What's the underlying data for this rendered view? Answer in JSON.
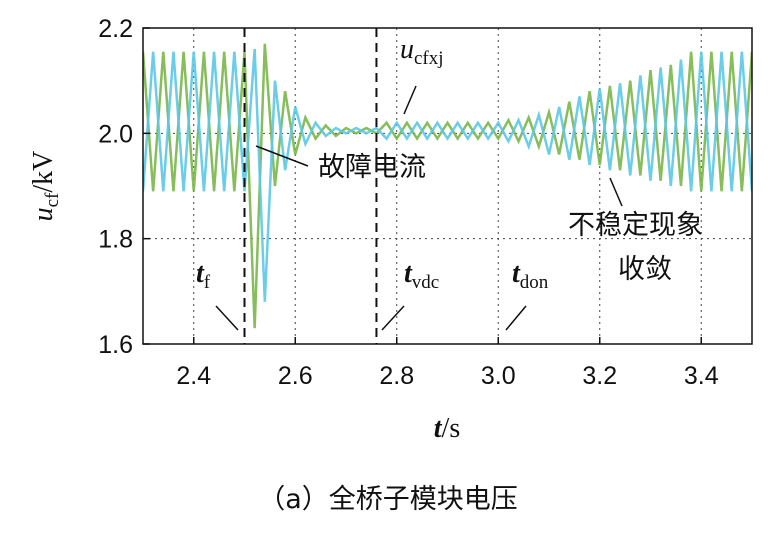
{
  "chart_data": {
    "type": "line",
    "x": [
      2.3,
      2.32,
      2.34,
      2.36,
      2.38,
      2.4,
      2.42,
      2.44,
      2.46,
      2.48,
      2.5,
      2.52,
      2.54,
      2.56,
      2.58,
      2.6,
      2.62,
      2.64,
      2.66,
      2.68,
      2.7,
      2.72,
      2.74,
      2.76,
      2.78,
      2.8,
      2.82,
      2.84,
      2.86,
      2.88,
      2.9,
      2.92,
      2.94,
      2.96,
      2.98,
      3.0,
      3.02,
      3.04,
      3.06,
      3.08,
      3.1,
      3.12,
      3.14,
      3.16,
      3.18,
      3.2,
      3.22,
      3.24,
      3.26,
      3.28,
      3.3,
      3.32,
      3.34,
      3.36,
      3.38,
      3.4,
      3.42,
      3.44,
      3.46,
      3.48,
      3.5
    ],
    "series": [
      {
        "color": "#7ab648",
        "values": [
          2.155,
          1.89,
          2.155,
          1.89,
          2.155,
          1.89,
          2.155,
          1.89,
          2.155,
          1.89,
          2.155,
          1.63,
          2.17,
          1.9,
          2.08,
          1.96,
          2.03,
          1.99,
          2.015,
          1.995,
          2.01,
          2.0,
          2.01,
          2.0,
          2.02,
          1.99,
          2.02,
          1.99,
          2.02,
          1.99,
          2.02,
          1.99,
          2.02,
          1.99,
          2.02,
          1.99,
          2.025,
          1.985,
          2.03,
          1.975,
          2.04,
          1.96,
          2.06,
          1.95,
          2.08,
          1.94,
          2.09,
          1.93,
          2.1,
          1.92,
          2.12,
          1.91,
          2.13,
          1.9,
          2.155,
          1.89,
          2.155,
          1.89,
          2.155,
          1.89,
          2.155
        ]
      },
      {
        "color": "#5bc8e8",
        "values": [
          1.89,
          2.155,
          1.89,
          2.155,
          1.89,
          2.155,
          1.89,
          2.155,
          1.89,
          2.155,
          1.89,
          2.16,
          1.68,
          2.1,
          1.93,
          2.05,
          1.98,
          2.02,
          1.995,
          2.01,
          2.0,
          2.01,
          2.0,
          2.01,
          1.99,
          2.02,
          1.99,
          2.02,
          1.99,
          2.02,
          1.99,
          2.02,
          1.99,
          2.02,
          1.99,
          2.02,
          1.985,
          2.025,
          1.975,
          2.035,
          1.96,
          2.05,
          1.95,
          2.07,
          1.94,
          2.085,
          1.93,
          2.095,
          1.92,
          2.11,
          1.91,
          2.125,
          1.9,
          2.14,
          1.89,
          2.155,
          1.89,
          2.155,
          1.89,
          2.155,
          1.89
        ]
      }
    ],
    "xlim": [
      2.3,
      3.5
    ],
    "xticks": [
      2.4,
      2.6,
      2.8,
      {
        "value": 3,
        "label": "3.0"
      },
      3.2,
      3.4
    ],
    "ylim": [
      1.6,
      2.2
    ],
    "yticks": [
      1.6,
      1.8,
      {
        "value": 2,
        "label": "2.0"
      },
      2.2
    ],
    "grid": true,
    "markers": [
      {
        "x": 2.5,
        "main": "t",
        "sub": "f"
      },
      {
        "x": 2.76,
        "main": "t",
        "sub": "vdc"
      }
    ],
    "annotations": {
      "don": {
        "main": "t",
        "sub": "don"
      },
      "ucf": {
        "main": "u",
        "sub": "cfxj"
      },
      "fault": "故障电流",
      "unstable": [
        "不稳定现象",
        "收敛"
      ]
    },
    "ylabel": {
      "main": "u",
      "sub": "cf",
      "unit": "/kV"
    },
    "xlabel": {
      "main": "t",
      "unit": "/s"
    },
    "caption": "（a）全桥子模块电压"
  }
}
